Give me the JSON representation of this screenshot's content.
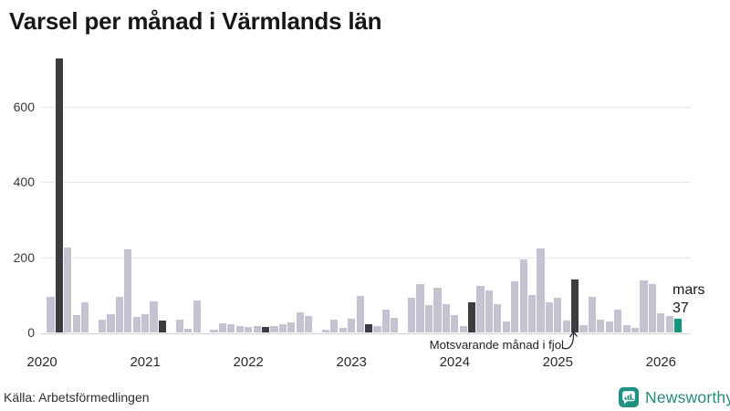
{
  "title": "Varsel per månad i Värmlands län",
  "source": "Källa: Arbetsförmedlingen",
  "branding": {
    "logo_text": "Newsworthy"
  },
  "annotation": {
    "text": "Motsvarande månad i fjol"
  },
  "last_bar_label": {
    "month": "mars",
    "value": "37"
  },
  "colors": {
    "bar": "#c5c3d1",
    "highlight_bar": "#3c3c41",
    "current_bar": "#13957f",
    "brand": "#1f9183",
    "grid": "#e8e8ee",
    "axis_line": "#d2d2da"
  },
  "chart_data": {
    "type": "bar",
    "title": "Varsel per månad i Värmlands län",
    "xlabel": "",
    "ylabel": "",
    "y_ticks": [
      0,
      200,
      400,
      600
    ],
    "ylim": [
      0,
      740
    ],
    "x_tick_labels": [
      "2020",
      "2021",
      "2022",
      "2023",
      "2024",
      "2025",
      "2026"
    ],
    "year_order": [
      "2020",
      "2021",
      "2022",
      "2023",
      "2024",
      "2025",
      "2026"
    ],
    "values_by_year": {
      "2020": [
        0,
        95,
        730,
        225,
        47,
        80,
        0,
        35,
        49,
        95,
        222,
        42
      ],
      "2021": [
        48,
        83,
        31,
        0,
        35,
        10,
        85,
        0,
        7,
        24,
        21,
        17
      ],
      "2022": [
        14,
        16,
        14,
        16,
        22,
        26,
        53,
        44,
        0,
        7,
        33,
        12
      ],
      "2023": [
        36,
        98,
        22,
        16,
        60,
        40,
        0,
        92,
        129,
        73,
        119,
        76
      ],
      "2024": [
        46,
        18,
        81,
        123,
        111,
        76,
        30,
        137,
        195,
        100,
        223,
        80
      ],
      "2025": [
        92,
        32,
        142,
        20,
        95,
        35,
        28,
        61,
        20,
        12,
        138,
        128
      ],
      "2026": [
        51,
        44,
        37
      ]
    },
    "highlight_month_index": 2,
    "current_bar": {
      "label": "mars",
      "value": 37
    },
    "grid": true,
    "legend": false
  }
}
